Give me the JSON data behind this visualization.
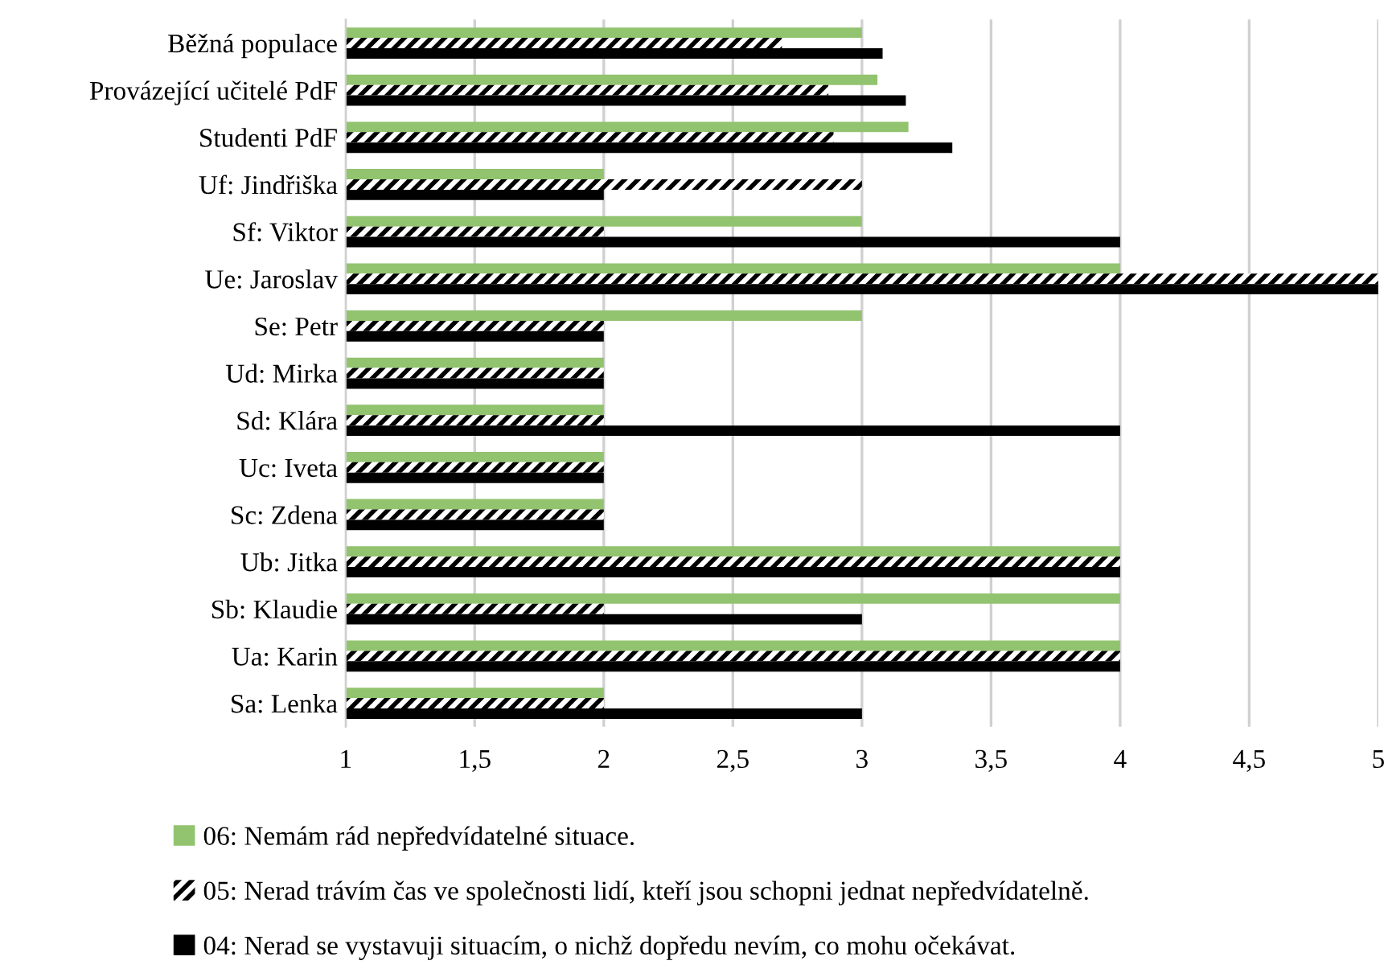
{
  "chart_data": {
    "type": "bar",
    "orientation": "horizontal",
    "categories": [
      "Běžná populace",
      "Provázející učitelé PdF",
      "Studenti PdF",
      "Uf: Jindřiška",
      "Sf: Viktor",
      "Ue: Jaroslav",
      "Se: Petr",
      "Ud: Mirka",
      "Sd: Klára",
      "Uc: Iveta",
      "Sc: Zdena",
      "Ub: Jitka",
      "Sb: Klaudie",
      "Ua: Karin",
      "Sa: Lenka"
    ],
    "series": [
      {
        "name": "06: Nemám rád nepředvídatelné situace.",
        "color": "#92c36f",
        "values": [
          3,
          3.06,
          3.18,
          2,
          3,
          4,
          3,
          2,
          2,
          2,
          2,
          4,
          4,
          4,
          2
        ]
      },
      {
        "name": "05: Nerad trávím čas ve společnosti lidí, kteří jsou schopni jednat nepředvídatelně.",
        "color": "#000000",
        "values": [
          2.69,
          2.87,
          2.89,
          3,
          2,
          5,
          2,
          2,
          2,
          2,
          2,
          4,
          2,
          4,
          2
        ]
      },
      {
        "name": "04: Nerad se vystavuji situacím, o nichž dopředu nevím, co mohu očekávat.",
        "color": "#000000",
        "values": [
          3.08,
          3.17,
          3.35,
          2,
          4,
          5,
          2,
          2,
          4,
          2,
          2,
          4,
          3,
          4,
          3
        ]
      }
    ],
    "xlim": [
      1,
      5
    ],
    "xticks": [
      1,
      {
        "value": 1.5,
        "label": "1,5"
      },
      2,
      {
        "value": 2.5,
        "label": "2,5"
      },
      3,
      {
        "value": 3.5,
        "label": "3,5"
      },
      4,
      {
        "value": 4.5,
        "label": "4,5"
      },
      5
    ],
    "grid": "x",
    "legend": "bottom"
  }
}
